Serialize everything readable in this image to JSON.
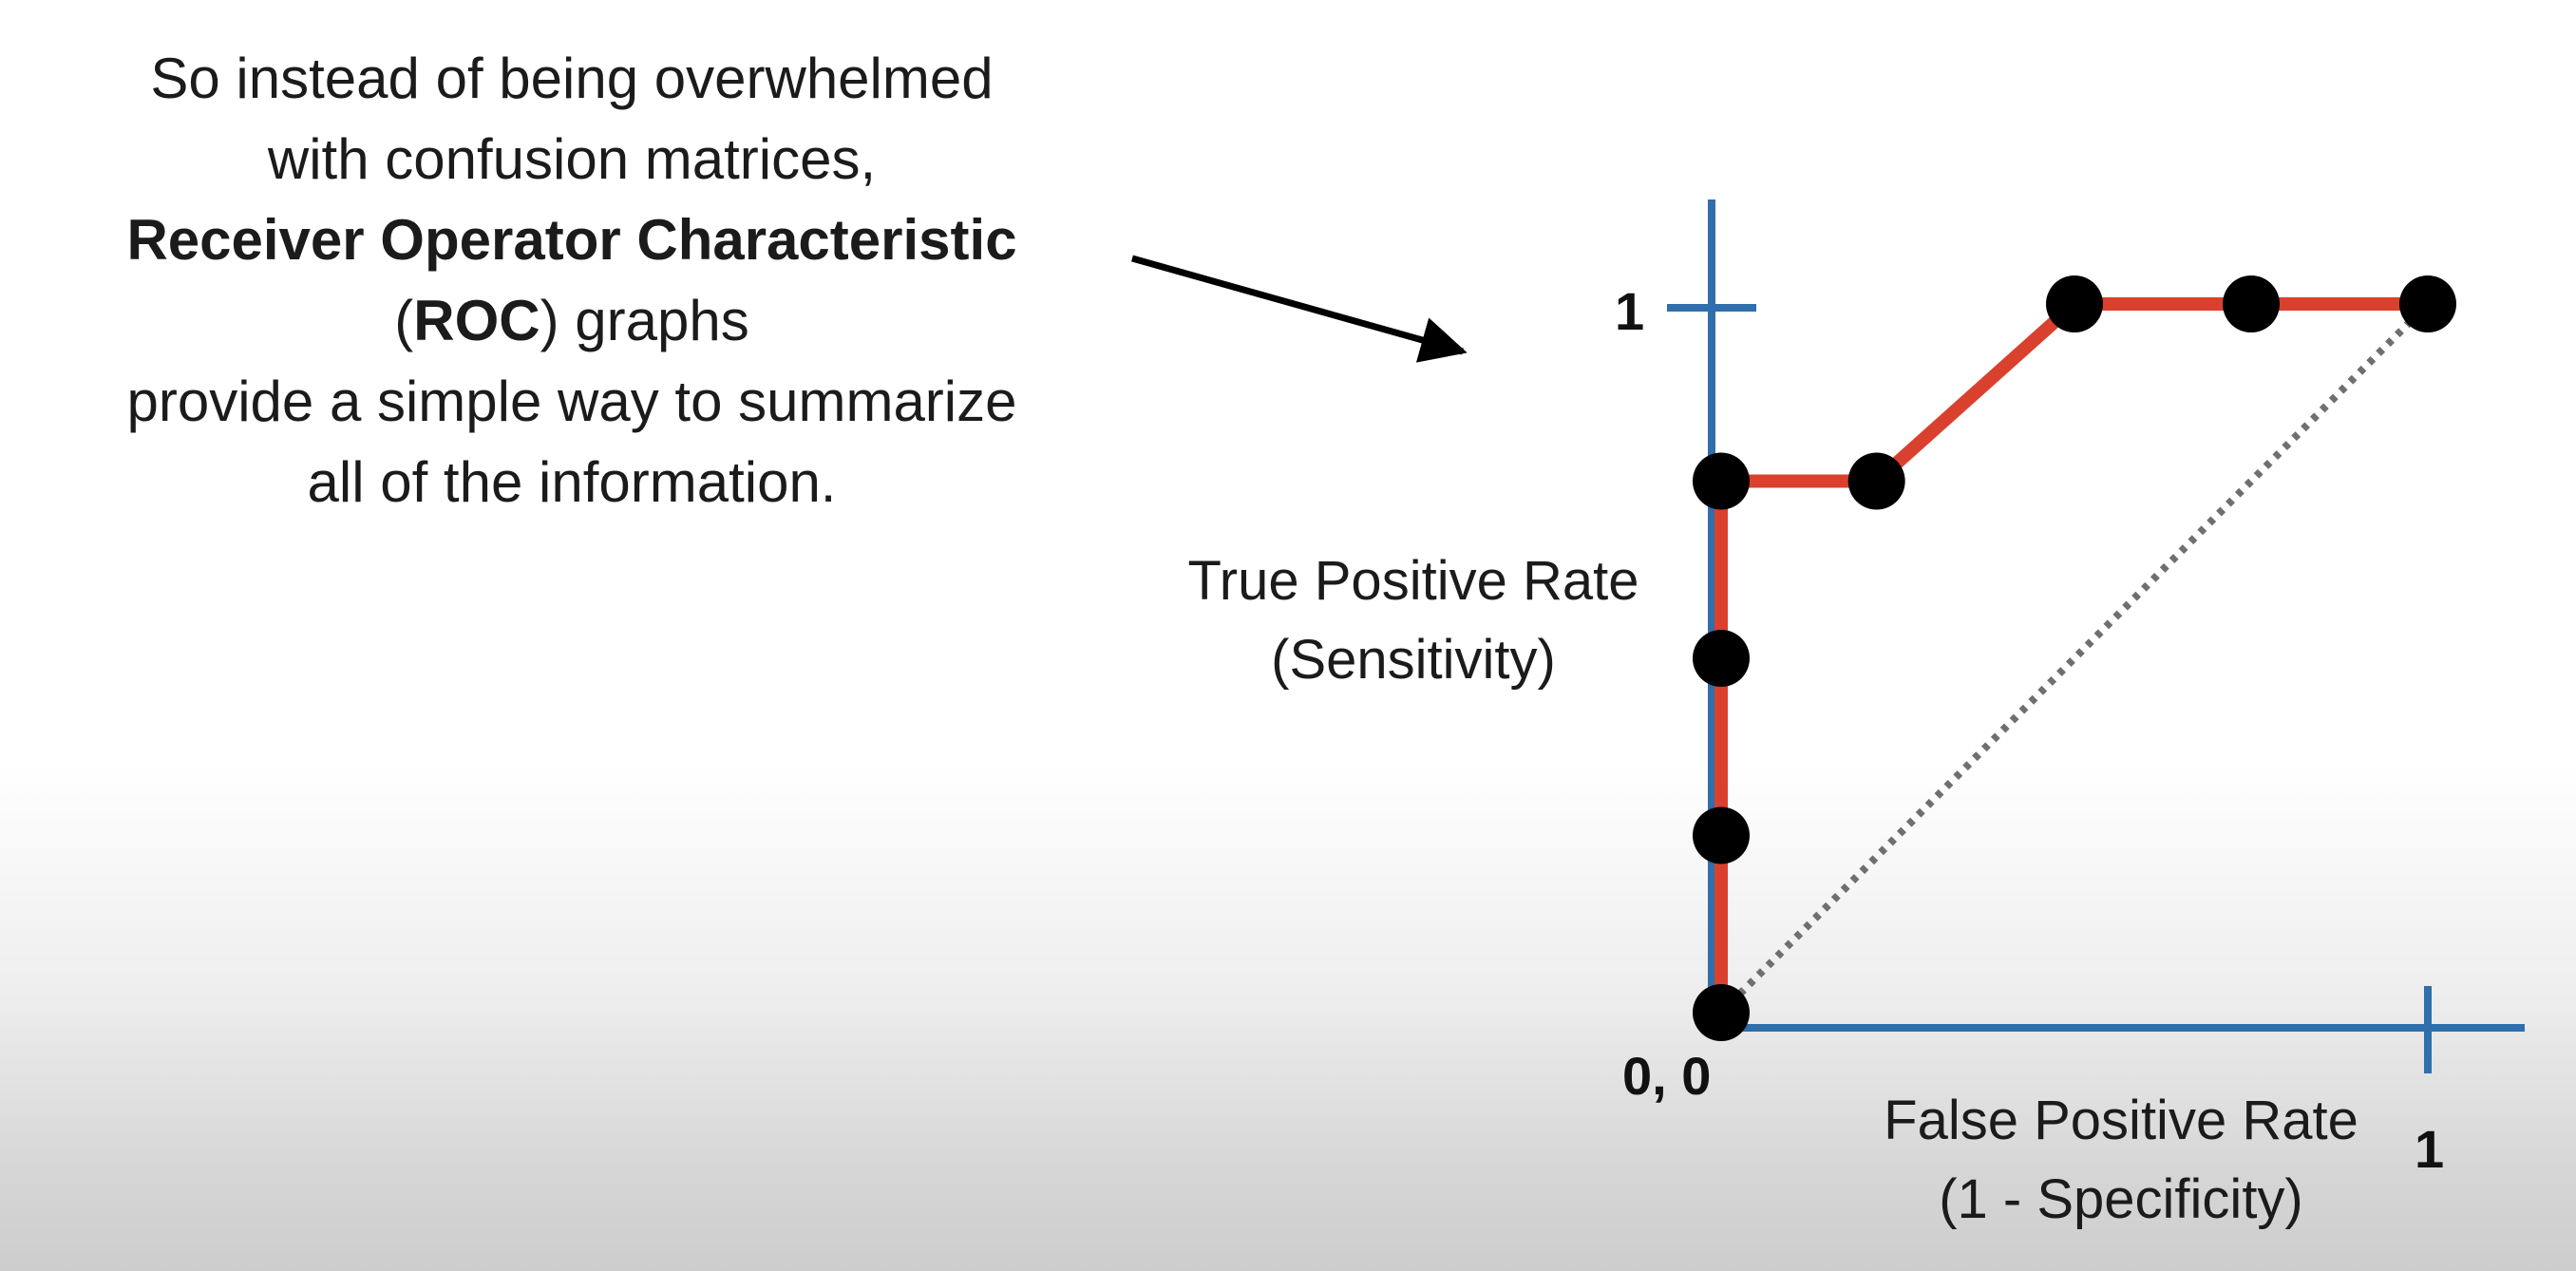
{
  "caption": {
    "line1": "So instead of being overwhelmed",
    "line2": "with confusion matrices,",
    "line3_bold": "Receiver Operator Characteristic",
    "line4_open": "(",
    "line4_bold": "ROC",
    "line4_rest": ") graphs",
    "line5": "provide a simple way to summarize",
    "line6": "all of the information."
  },
  "chart_data": {
    "type": "line",
    "ylabel_line1": "True Positive Rate",
    "ylabel_line2": "(Sensitivity)",
    "xlabel_line1": "False Positive Rate",
    "xlabel_line2": "(1 - Specificity)",
    "origin_label": "0, 0",
    "y_tick_label": "1",
    "x_tick_label": "1",
    "xlim": [
      0,
      1
    ],
    "ylim": [
      0,
      1
    ],
    "points": [
      {
        "x": 0,
        "y": 0
      },
      {
        "x": 0,
        "y": 0.25
      },
      {
        "x": 0,
        "y": 0.5
      },
      {
        "x": 0,
        "y": 0.75
      },
      {
        "x": 0.22,
        "y": 0.75
      },
      {
        "x": 0.5,
        "y": 1
      },
      {
        "x": 0.75,
        "y": 1
      },
      {
        "x": 1,
        "y": 1
      }
    ],
    "roc_curve": [
      {
        "x": 0,
        "y": 0
      },
      {
        "x": 0,
        "y": 0.75
      },
      {
        "x": 0.22,
        "y": 0.75
      },
      {
        "x": 0.5,
        "y": 1
      },
      {
        "x": 1,
        "y": 1
      }
    ],
    "reference_line": [
      {
        "x": 0,
        "y": 0
      },
      {
        "x": 1,
        "y": 1
      }
    ],
    "colors": {
      "axes": "#2f6fac",
      "curve": "#d9412e",
      "points": "#000000",
      "reference": "#6f6f6f",
      "arrow": "#000000"
    }
  }
}
